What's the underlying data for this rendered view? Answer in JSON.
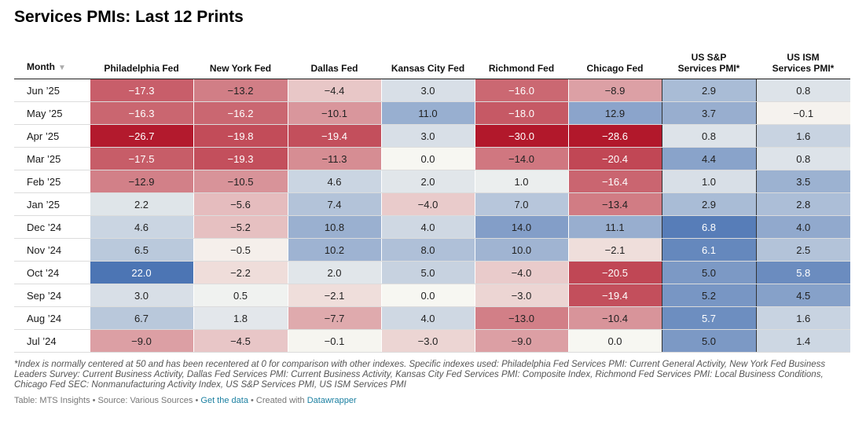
{
  "title": "Services PMIs: Last 12 Prints",
  "chart_data": {
    "type": "table",
    "title": "Services PMIs: Last 12 Prints",
    "columns": [
      "Month",
      "Philadelphia Fed",
      "New York Fed",
      "Dallas Fed",
      "Kansas City Fed",
      "Richmond Fed",
      "Chicago Fed",
      "US S&P Services PMI*",
      "US ISM Services PMI*"
    ],
    "rows": [
      {
        "month": "Jun ’25",
        "values": [
          -17.3,
          -13.2,
          -4.4,
          3.0,
          -16.0,
          -8.9,
          2.9,
          0.8
        ]
      },
      {
        "month": "May ’25",
        "values": [
          -16.3,
          -16.2,
          -10.1,
          11.0,
          -18.0,
          12.9,
          3.7,
          -0.1
        ]
      },
      {
        "month": "Apr ’25",
        "values": [
          -26.7,
          -19.8,
          -19.4,
          3.0,
          -30.0,
          -28.6,
          0.8,
          1.6
        ]
      },
      {
        "month": "Mar ’25",
        "values": [
          -17.5,
          -19.3,
          -11.3,
          0.0,
          -14.0,
          -20.4,
          4.4,
          0.8
        ]
      },
      {
        "month": "Feb ’25",
        "values": [
          -12.9,
          -10.5,
          4.6,
          2.0,
          1.0,
          -16.4,
          1.0,
          3.5
        ]
      },
      {
        "month": "Jan ’25",
        "values": [
          2.2,
          -5.6,
          7.4,
          -4.0,
          7.0,
          -13.4,
          2.9,
          2.8
        ]
      },
      {
        "month": "Dec ’24",
        "values": [
          4.6,
          -5.2,
          10.8,
          4.0,
          14.0,
          11.1,
          6.8,
          4.0
        ]
      },
      {
        "month": "Nov ’24",
        "values": [
          6.5,
          -0.5,
          10.2,
          8.0,
          10.0,
          -2.1,
          6.1,
          2.5
        ]
      },
      {
        "month": "Oct ’24",
        "values": [
          22.0,
          -2.2,
          2.0,
          5.0,
          -4.0,
          -20.5,
          5.0,
          5.8
        ]
      },
      {
        "month": "Sep ’24",
        "values": [
          3.0,
          0.5,
          -2.1,
          0.0,
          -3.0,
          -19.4,
          5.2,
          4.5
        ]
      },
      {
        "month": "Aug ’24",
        "values": [
          6.7,
          1.8,
          -7.7,
          4.0,
          -13.0,
          -10.4,
          5.7,
          1.6
        ]
      },
      {
        "month": "Jul ’24",
        "values": [
          -9.0,
          -4.5,
          -0.1,
          -3.0,
          -9.0,
          0.0,
          5.0,
          1.4
        ]
      }
    ]
  },
  "header": {
    "month": "Month",
    "sort_icon": "▼",
    "cols": [
      "Philadelphia Fed",
      "New York Fed",
      "Dallas Fed",
      "Kansas City Fed",
      "Richmond Fed",
      "Chicago Fed"
    ],
    "sp_line1": "US S&P",
    "sp_line2": "Services PMI*",
    "ism_line1": "US ISM",
    "ism_line2": "Services PMI*"
  },
  "footnote": "*Index is normally centered at 50 and has been recentered at 0 for comparison with other indexes. Specific indexes used: Philadelphia Fed Services PMI: Current General Activity, New York Fed Business Leaders Survey: Current Business Activity, Dallas Fed Services PMI: Current Business Activity, Kansas City Fed Services PMI: Composite Index, Richmond Fed Services PMI: Local Business Conditions, Chicago Fed SEC: Nonmanufacturing Activity Index, US S&P Services PMI, US ISM Services PMI",
  "credits": {
    "prefix": "Table: MTS Insights • Source: Various Sources • ",
    "data_link": "Get the data",
    "middle": " • Created with ",
    "tool_link": "Datawrapper"
  },
  "colors": {
    "neg_max": "#b2182b",
    "neutral": "#f7f7f2",
    "pos_max": "#2c5ca8"
  }
}
